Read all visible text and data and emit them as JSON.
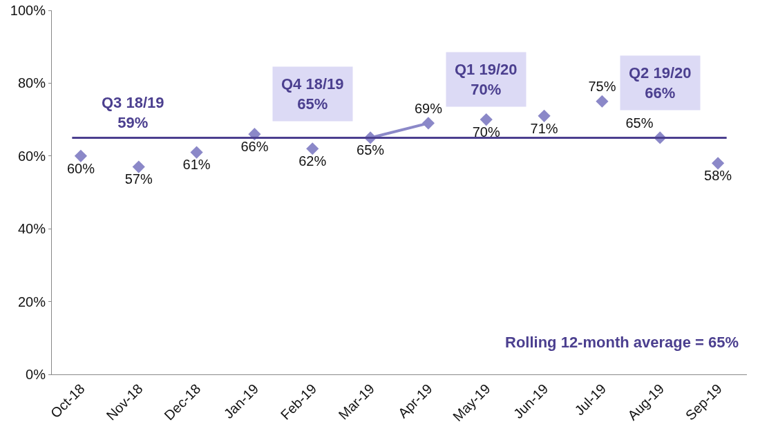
{
  "chart_data": {
    "type": "scatter",
    "categories": [
      "Oct-18",
      "Nov-18",
      "Dec-18",
      "Jan-19",
      "Feb-19",
      "Mar-19",
      "Apr-19",
      "May-19",
      "Jun-19",
      "Jul-19",
      "Aug-19",
      "Sep-19"
    ],
    "series": [
      {
        "color": "#8b88c8",
        "values": [
          60,
          57,
          61,
          66,
          62,
          65,
          69,
          70,
          71,
          75,
          65,
          58
        ],
        "value_labels": [
          "60%",
          "57%",
          "61%",
          "66%",
          "62%",
          "65%",
          "69%",
          "70%",
          "71%",
          "75%",
          "65%",
          "58%"
        ]
      },
      {
        "type": "line",
        "marker": "none",
        "color": "#8b88c8",
        "x": [
          "Mar-19",
          "Apr-19"
        ],
        "values": [
          65,
          69
        ]
      }
    ],
    "marker": "diamond",
    "ylim": [
      0,
      100
    ],
    "yticks": [
      {
        "value": 0,
        "label": "0%"
      },
      {
        "value": 20,
        "label": "20%"
      },
      {
        "value": 40,
        "label": "40%"
      },
      {
        "value": 60,
        "label": "60%"
      },
      {
        "value": 80,
        "label": "80%"
      },
      {
        "value": 100,
        "label": "100%"
      }
    ],
    "grid": false,
    "ref_lines": [
      {
        "axis": "y",
        "value": 65,
        "label": "Rolling 12-month average = 65%",
        "color": "#4b3f8f"
      }
    ],
    "annotations": [
      "Q3 18/19\n59%",
      "Q4 18/19\n65%",
      "Q1 19/20\n70%",
      "Q2 19/20\n66%"
    ]
  }
}
